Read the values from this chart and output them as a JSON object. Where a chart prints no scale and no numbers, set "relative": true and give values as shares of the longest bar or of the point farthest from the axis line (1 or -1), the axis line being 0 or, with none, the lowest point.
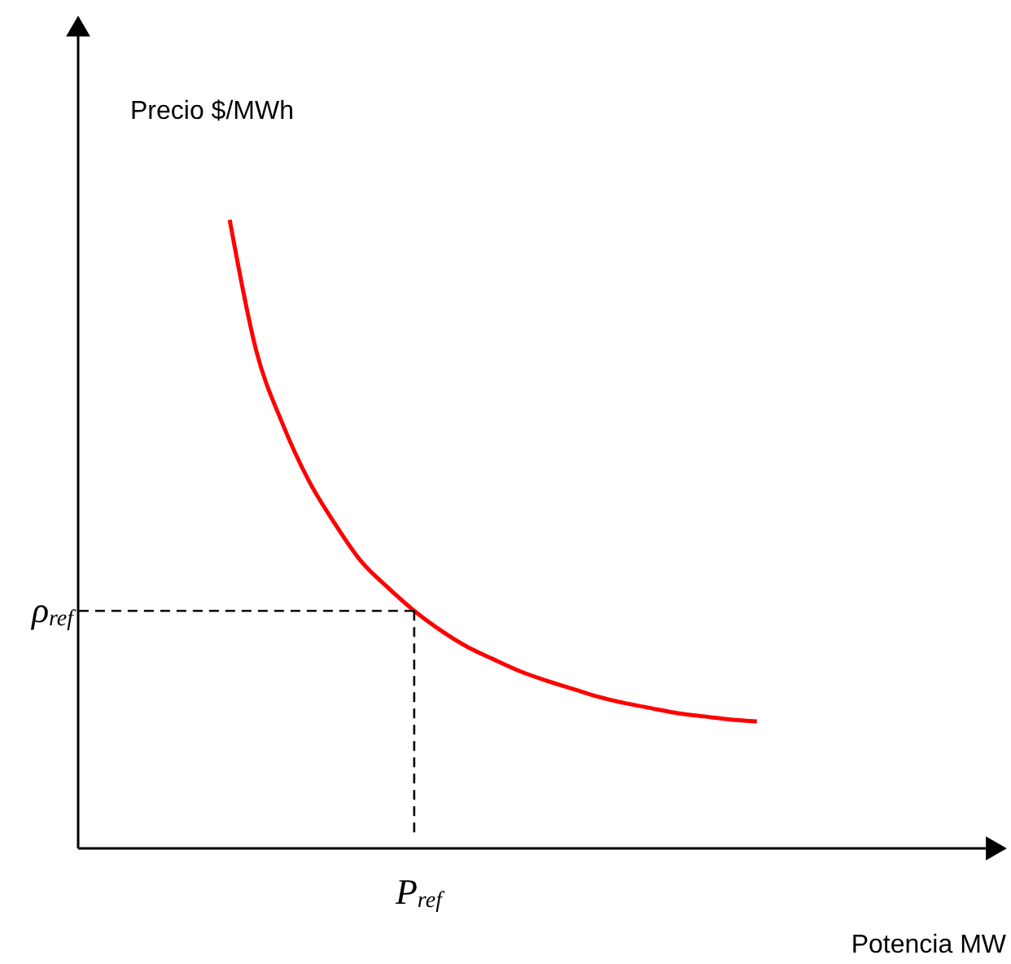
{
  "chart_data": {
    "type": "line",
    "relative": true,
    "xlabel": "Potencia MW",
    "ylabel": "Precio $/MWh",
    "categories": [
      null,
      null,
      null,
      null,
      null,
      null,
      null,
      null,
      null,
      null,
      null,
      null,
      null,
      null,
      null,
      null,
      null,
      null,
      null,
      null,
      null
    ],
    "series": [
      {
        "color": "#ff0000",
        "values": [
          1,
          0.793,
          0.676,
          0.585,
          0.516,
          0.456,
          0.415,
          0.378,
          0.347,
          0.321,
          0.301,
          0.282,
          0.267,
          0.254,
          0.241,
          0.231,
          0.223,
          0.215,
          0.21,
          0.205,
          0.202
        ]
      }
    ],
    "ref_lines": [
      {
        "axis": "y",
        "value": 0.378,
        "label": "ρ$_{ref}$",
        "line_style": "dashed",
        "color": "#000000"
      }
    ],
    "annotations": [
      "P$_{ref}$"
    ],
    "marker": "none",
    "line_style": "solid"
  }
}
